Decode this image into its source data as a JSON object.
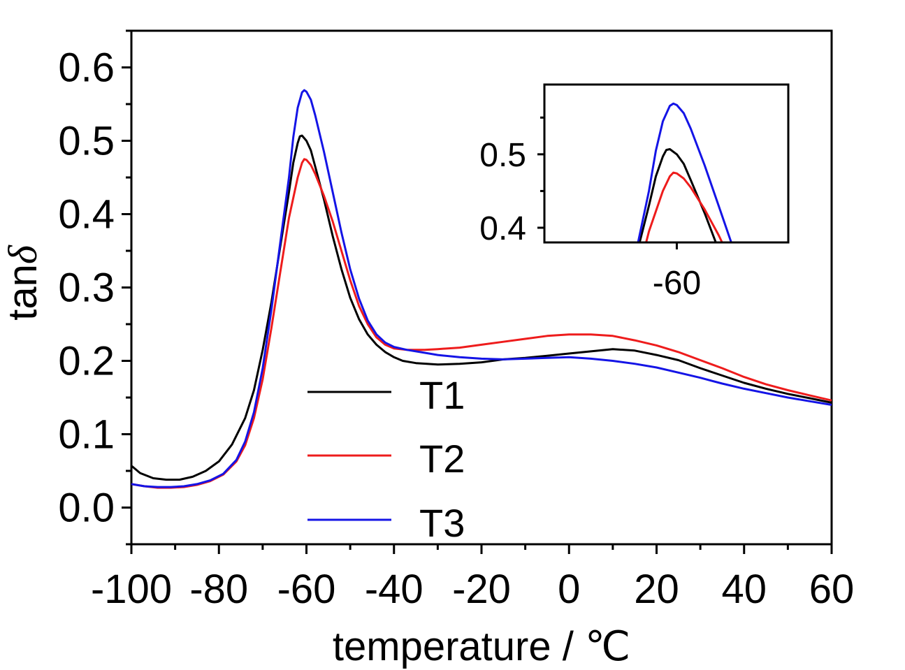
{
  "chart_data": {
    "type": "line",
    "xlabel": "temperature / ℃",
    "ylabel_main": "tan",
    "ylabel_symbol": "δ",
    "xlim": [
      -100,
      60
    ],
    "ylim": [
      -0.05,
      0.65
    ],
    "x_ticks": [
      -100,
      -80,
      -60,
      -40,
      -20,
      0,
      20,
      40,
      60
    ],
    "x_tick_labels": [
      "-100",
      "-80",
      "-60",
      "-40",
      "-20",
      "0",
      "20",
      "40",
      "60"
    ],
    "y_ticks": [
      0.0,
      0.1,
      0.2,
      0.3,
      0.4,
      0.5,
      0.6
    ],
    "y_tick_labels": [
      "0.0",
      "0.1",
      "0.2",
      "0.3",
      "0.4",
      "0.5",
      "0.6"
    ],
    "grid": false,
    "legend_position": "lower-center",
    "series": [
      {
        "name": "T1",
        "color": "#000000",
        "points": [
          [
            -100,
            0.057
          ],
          [
            -98,
            0.047
          ],
          [
            -95,
            0.04
          ],
          [
            -92,
            0.038
          ],
          [
            -89,
            0.038
          ],
          [
            -86,
            0.042
          ],
          [
            -83,
            0.05
          ],
          [
            -80,
            0.063
          ],
          [
            -77,
            0.086
          ],
          [
            -74,
            0.122
          ],
          [
            -72,
            0.16
          ],
          [
            -70,
            0.215
          ],
          [
            -68,
            0.28
          ],
          [
            -66,
            0.355
          ],
          [
            -64,
            0.43
          ],
          [
            -63,
            0.47
          ],
          [
            -62,
            0.497
          ],
          [
            -61.5,
            0.506
          ],
          [
            -61,
            0.507
          ],
          [
            -60,
            0.5
          ],
          [
            -59,
            0.487
          ],
          [
            -58,
            0.465
          ],
          [
            -56,
            0.42
          ],
          [
            -54,
            0.37
          ],
          [
            -52,
            0.325
          ],
          [
            -50,
            0.286
          ],
          [
            -48,
            0.257
          ],
          [
            -46,
            0.236
          ],
          [
            -44,
            0.222
          ],
          [
            -42,
            0.212
          ],
          [
            -40,
            0.205
          ],
          [
            -38,
            0.2
          ],
          [
            -35,
            0.197
          ],
          [
            -30,
            0.195
          ],
          [
            -25,
            0.196
          ],
          [
            -20,
            0.198
          ],
          [
            -15,
            0.202
          ],
          [
            -10,
            0.204
          ],
          [
            -5,
            0.207
          ],
          [
            0,
            0.21
          ],
          [
            5,
            0.213
          ],
          [
            10,
            0.216
          ],
          [
            15,
            0.214
          ],
          [
            20,
            0.208
          ],
          [
            25,
            0.201
          ],
          [
            30,
            0.19
          ],
          [
            35,
            0.18
          ],
          [
            40,
            0.17
          ],
          [
            45,
            0.162
          ],
          [
            50,
            0.155
          ],
          [
            55,
            0.149
          ],
          [
            60,
            0.143
          ]
        ]
      },
      {
        "name": "T2",
        "color": "#ee1c1c",
        "points": [
          [
            -100,
            0.032
          ],
          [
            -97,
            0.029
          ],
          [
            -94,
            0.027
          ],
          [
            -91,
            0.027
          ],
          [
            -88,
            0.028
          ],
          [
            -85,
            0.031
          ],
          [
            -82,
            0.036
          ],
          [
            -79,
            0.045
          ],
          [
            -76,
            0.063
          ],
          [
            -74,
            0.085
          ],
          [
            -72,
            0.122
          ],
          [
            -70,
            0.175
          ],
          [
            -68,
            0.245
          ],
          [
            -66,
            0.32
          ],
          [
            -64,
            0.395
          ],
          [
            -62,
            0.45
          ],
          [
            -61,
            0.47
          ],
          [
            -60.5,
            0.475
          ],
          [
            -60,
            0.474
          ],
          [
            -59,
            0.467
          ],
          [
            -58,
            0.455
          ],
          [
            -56,
            0.425
          ],
          [
            -54,
            0.39
          ],
          [
            -52,
            0.35
          ],
          [
            -50,
            0.31
          ],
          [
            -48,
            0.275
          ],
          [
            -46,
            0.25
          ],
          [
            -44,
            0.232
          ],
          [
            -42,
            0.222
          ],
          [
            -40,
            0.217
          ],
          [
            -37,
            0.215
          ],
          [
            -33,
            0.215
          ],
          [
            -30,
            0.216
          ],
          [
            -25,
            0.218
          ],
          [
            -20,
            0.222
          ],
          [
            -15,
            0.226
          ],
          [
            -10,
            0.23
          ],
          [
            -5,
            0.234
          ],
          [
            0,
            0.236
          ],
          [
            5,
            0.236
          ],
          [
            10,
            0.234
          ],
          [
            15,
            0.228
          ],
          [
            20,
            0.221
          ],
          [
            25,
            0.212
          ],
          [
            30,
            0.201
          ],
          [
            35,
            0.19
          ],
          [
            40,
            0.178
          ],
          [
            45,
            0.168
          ],
          [
            50,
            0.16
          ],
          [
            55,
            0.153
          ],
          [
            60,
            0.146
          ]
        ]
      },
      {
        "name": "T3",
        "color": "#1414e6",
        "points": [
          [
            -100,
            0.032
          ],
          [
            -97,
            0.029
          ],
          [
            -94,
            0.028
          ],
          [
            -91,
            0.028
          ],
          [
            -88,
            0.029
          ],
          [
            -85,
            0.032
          ],
          [
            -82,
            0.037
          ],
          [
            -79,
            0.046
          ],
          [
            -76,
            0.065
          ],
          [
            -74,
            0.09
          ],
          [
            -72,
            0.13
          ],
          [
            -70,
            0.19
          ],
          [
            -68,
            0.27
          ],
          [
            -66,
            0.36
          ],
          [
            -64,
            0.45
          ],
          [
            -63,
            0.505
          ],
          [
            -62,
            0.545
          ],
          [
            -61,
            0.566
          ],
          [
            -60.5,
            0.569
          ],
          [
            -60,
            0.567
          ],
          [
            -59,
            0.556
          ],
          [
            -58,
            0.535
          ],
          [
            -56,
            0.485
          ],
          [
            -54,
            0.43
          ],
          [
            -52,
            0.375
          ],
          [
            -50,
            0.325
          ],
          [
            -48,
            0.285
          ],
          [
            -46,
            0.255
          ],
          [
            -44,
            0.236
          ],
          [
            -42,
            0.225
          ],
          [
            -40,
            0.219
          ],
          [
            -37,
            0.215
          ],
          [
            -34,
            0.212
          ],
          [
            -30,
            0.208
          ],
          [
            -25,
            0.205
          ],
          [
            -20,
            0.203
          ],
          [
            -15,
            0.202
          ],
          [
            -10,
            0.203
          ],
          [
            -5,
            0.204
          ],
          [
            0,
            0.205
          ],
          [
            5,
            0.203
          ],
          [
            10,
            0.2
          ],
          [
            15,
            0.196
          ],
          [
            20,
            0.191
          ],
          [
            25,
            0.184
          ],
          [
            30,
            0.177
          ],
          [
            35,
            0.169
          ],
          [
            40,
            0.162
          ],
          [
            45,
            0.156
          ],
          [
            50,
            0.15
          ],
          [
            55,
            0.145
          ],
          [
            60,
            0.14
          ]
        ]
      }
    ],
    "inset": {
      "xlim": [
        -79,
        -44
      ],
      "ylim": [
        0.38,
        0.595
      ],
      "x_ticks": [
        -60
      ],
      "x_tick_labels": [
        "-60"
      ],
      "y_ticks": [
        0.4,
        0.5
      ],
      "y_tick_labels": [
        "0.4",
        "0.5"
      ]
    }
  }
}
